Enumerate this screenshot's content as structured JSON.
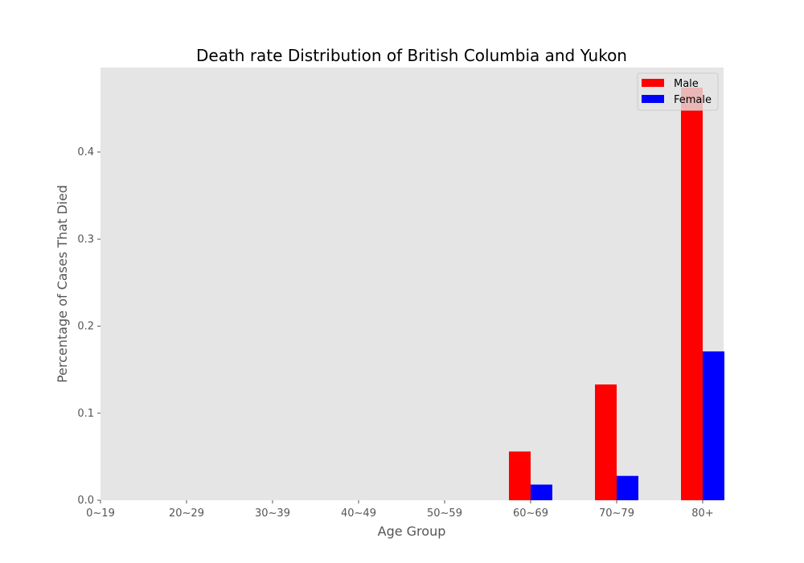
{
  "chart_data": {
    "type": "bar",
    "title": "Death rate Distribution of British Columbia and Yukon",
    "xlabel": "Age Group",
    "ylabel": "Percentage of Cases That Died",
    "categories": [
      "0~19",
      "20~29",
      "30~39",
      "40~49",
      "50~59",
      "60~69",
      "70~79",
      "80+"
    ],
    "series": [
      {
        "name": "Male",
        "color": "#ff0000",
        "values": [
          0,
          0,
          0,
          0,
          0,
          0.056,
          0.133,
          0.474
        ]
      },
      {
        "name": "Female",
        "color": "#0000ff",
        "values": [
          0,
          0,
          0,
          0,
          0,
          0.018,
          0.028,
          0.171
        ]
      }
    ],
    "yticks": [
      "0.0",
      "0.1",
      "0.2",
      "0.3",
      "0.4"
    ],
    "ylim": [
      0,
      0.497
    ],
    "grid": false,
    "legend_position": "top-right",
    "background": "#e5e5e5"
  }
}
